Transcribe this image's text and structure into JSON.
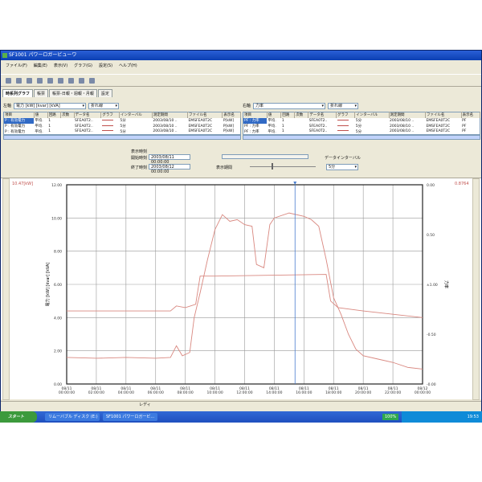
{
  "window": {
    "title": "SF1001 パワーロガービューワ"
  },
  "menu": [
    "ファイル(F)",
    "編集(E)",
    "表示(V)",
    "グラフ(G)",
    "設定(S)",
    "ヘルプ(H)"
  ],
  "tabs": [
    "時系列グラフ",
    "帳票",
    "帳票-日報・週報・月報",
    "設定"
  ],
  "left_pane": {
    "axis_label": "左軸",
    "axis_value": "電力 [kW] [kvar] [kVA]",
    "graph_type": "折れ線",
    "columns": [
      "項目",
      "値",
      "回路",
      "次数",
      "データ名",
      "グラフ",
      "インターバル",
      "測定期間",
      "ファイル名",
      "表示名"
    ],
    "rows": [
      [
        "P : 有効電力",
        "平均.",
        "1",
        "",
        "SFEA0T2..",
        "",
        "5分",
        "2003/08/10 ..",
        "EMSFEA0T2C",
        "P[kW]"
      ],
      [
        "P : 有効電力",
        "平均.",
        "1",
        "",
        "SFEA0T2..",
        "",
        "5分",
        "2003/08/10 ..",
        "EMSFEA0T2C",
        "P[kW]"
      ],
      [
        "P : 有効電力",
        "平均.",
        "1",
        "",
        "SFEA0T2..",
        "",
        "5分",
        "2003/08/10 ..",
        "EMSFEA0T2C",
        "P[kW]"
      ]
    ]
  },
  "right_pane": {
    "axis_label": "右軸",
    "axis_value": "力率",
    "graph_type": "折れ線",
    "columns": [
      "項目",
      "値",
      "回路",
      "次数",
      "データ名",
      "グラフ",
      "インターバル",
      "測定期間",
      "ファイル名",
      "表示名"
    ],
    "rows": [
      [
        "PF : 力率",
        "平均.",
        "1",
        "",
        "SFEA0T2..",
        "",
        "5分",
        "2003/08/10 ..",
        "EMSFEA0T2C",
        "PF"
      ],
      [
        "PF : 力率",
        "平均.",
        "1",
        "",
        "SFEA0T2..",
        "",
        "5分",
        "2003/08/10 ..",
        "EMSFEA0T2C",
        "PF"
      ],
      [
        "PF : 力率",
        "平均.",
        "1",
        "",
        "SFEA0T2..",
        "",
        "5分",
        "2003/08/10 ..",
        "EMSFEA0T2C",
        "PF"
      ]
    ]
  },
  "time": {
    "display_time_label": "表示時刻",
    "start_label": "開始時刻",
    "start_value": "2003/08/11 00:00:00",
    "end_label": "終了時刻",
    "end_value": "2003/08/12 00:00:00",
    "period_label": "表示期間",
    "interval_label": "データインターバル",
    "interval_value": "5分"
  },
  "readouts": {
    "left": "10.47[kW]",
    "right": "0.8764"
  },
  "status": "レディ",
  "taskbar": {
    "start": "スタート",
    "tasks": [
      "リムーバブル ディスク (E:)",
      "SF1001 パワーロガービ..."
    ],
    "zoom": "100%",
    "clock": "19:53"
  },
  "chart_data": {
    "type": "line",
    "ylabel": "電力 [kW] [kvar] [kVA]",
    "y2label": "力率",
    "ylim": [
      0,
      12
    ],
    "yticks": [
      "0.00",
      "2.00",
      "4.00",
      "6.00",
      "8.00",
      "10.00",
      "12.00"
    ],
    "y2ticks": [
      "-0.00",
      "-0.50",
      "±1.00",
      "0.50",
      "0.00"
    ],
    "xticks": [
      [
        "08/11",
        "00:00:00"
      ],
      [
        "08/11",
        "02:00:00"
      ],
      [
        "08/11",
        "04:00:00"
      ],
      [
        "08/11",
        "06:00:00"
      ],
      [
        "08/11",
        "08:00:00"
      ],
      [
        "08/11",
        "10:00:00"
      ],
      [
        "08/11",
        "12:00:00"
      ],
      [
        "08/11",
        "14:00:00"
      ],
      [
        "08/11",
        "16:00:00"
      ],
      [
        "08/11",
        "18:00:00"
      ],
      [
        "08/11",
        "20:00:00"
      ],
      [
        "08/11",
        "22:00:00"
      ],
      [
        "08/12",
        "00:00:00"
      ]
    ],
    "xlim_hours": [
      0,
      24
    ],
    "grid": true,
    "cursor_hour": 15.4,
    "series": [
      {
        "color": "#d98880",
        "points": [
          [
            0,
            1.6
          ],
          [
            2,
            1.55
          ],
          [
            4,
            1.6
          ],
          [
            6,
            1.55
          ],
          [
            7,
            1.6
          ],
          [
            7.4,
            2.3
          ],
          [
            7.8,
            1.7
          ],
          [
            8.3,
            1.9
          ],
          [
            8.6,
            4.0
          ],
          [
            9,
            5.5
          ],
          [
            9.5,
            7.5
          ],
          [
            10,
            9.3
          ],
          [
            10.5,
            10.2
          ],
          [
            11,
            9.8
          ],
          [
            11.5,
            9.9
          ],
          [
            12,
            9.6
          ],
          [
            12.5,
            9.5
          ],
          [
            12.8,
            7.2
          ],
          [
            13.3,
            7.0
          ],
          [
            13.7,
            9.6
          ],
          [
            14,
            10.0
          ],
          [
            15,
            10.3
          ],
          [
            16,
            10.1
          ],
          [
            16.5,
            9.9
          ],
          [
            17,
            9.5
          ],
          [
            17.5,
            7.5
          ],
          [
            18,
            5.2
          ],
          [
            18.5,
            4.2
          ],
          [
            19,
            3.0
          ],
          [
            19.5,
            2.1
          ],
          [
            20,
            1.7
          ],
          [
            21,
            1.5
          ],
          [
            22,
            1.3
          ],
          [
            23,
            1.0
          ],
          [
            24,
            0.9
          ]
        ]
      },
      {
        "color": "#d98880",
        "points": [
          [
            0,
            4.4
          ],
          [
            7,
            4.4
          ],
          [
            7.4,
            4.7
          ],
          [
            8,
            4.6
          ],
          [
            8.7,
            4.8
          ],
          [
            9,
            6.5
          ],
          [
            10,
            6.5
          ],
          [
            17.5,
            6.6
          ],
          [
            17.8,
            5.0
          ],
          [
            18.3,
            4.6
          ],
          [
            20,
            4.4
          ],
          [
            22,
            4.2
          ],
          [
            24,
            4.0
          ]
        ]
      }
    ]
  }
}
